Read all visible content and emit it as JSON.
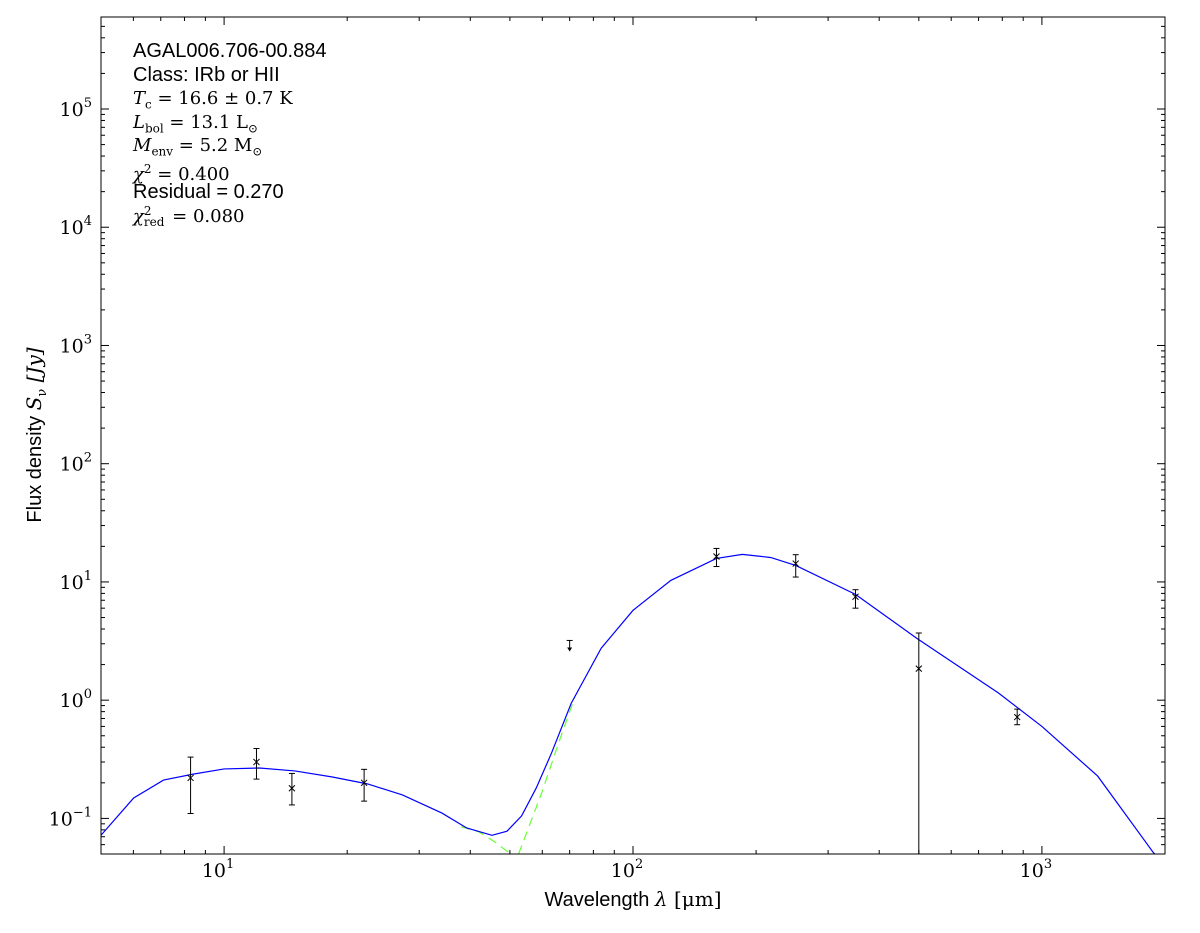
{
  "chart_data": {
    "type": "scatter",
    "xscale": "log",
    "yscale": "log",
    "xlim": [
      5,
      2000
    ],
    "ylim": [
      0.05,
      600000
    ],
    "grid": false,
    "xlabel": {
      "text": "Wavelength ",
      "symbol": "λ",
      "unit": " [μm]"
    },
    "ylabel": {
      "text": "Flux density ",
      "symbol": "S",
      "sub": "ν",
      "unit": " [Jy]"
    },
    "x_ticks": [
      {
        "base": "10",
        "exp": "1",
        "value": 10
      },
      {
        "base": "10",
        "exp": "2",
        "value": 100
      },
      {
        "base": "10",
        "exp": "3",
        "value": 1000
      }
    ],
    "y_ticks": [
      {
        "base": "10",
        "exp": "−1",
        "value": 0.1
      },
      {
        "base": "10",
        "exp": "0",
        "value": 1
      },
      {
        "base": "10",
        "exp": "1",
        "value": 10
      },
      {
        "base": "10",
        "exp": "2",
        "value": 100
      },
      {
        "base": "10",
        "exp": "3",
        "value": 1000
      },
      {
        "base": "10",
        "exp": "4",
        "value": 10000
      },
      {
        "base": "10",
        "exp": "5",
        "value": 100000
      }
    ],
    "annotations": {
      "source": "AGAL006.706-00.884",
      "class": "Class: IRb or HII",
      "tc": {
        "sym": "T",
        "sub": "c",
        "val": " = 16.6 ± 0.7 K"
      },
      "lbol": {
        "sym": "L",
        "sub": "bol",
        "val": " = 13.1 L",
        "unit_sub": "⊙"
      },
      "menv": {
        "sym": "M",
        "sub": "env",
        "val": " = 5.2 M",
        "unit_sub": "⊙"
      },
      "chi2": {
        "sym": "χ",
        "sup": "2",
        "val": " = 0.400"
      },
      "residual": "Residual = 0.270",
      "chi2red": {
        "sym": "χ",
        "sup": "2",
        "sub": "red",
        "val": " = 0.080"
      }
    },
    "points": [
      {
        "x": 8.28,
        "y": 0.22,
        "yerr_low": 0.11,
        "yerr_high": 0.33
      },
      {
        "x": 12,
        "y": 0.3,
        "yerr_low": 0.215,
        "yerr_high": 0.39
      },
      {
        "x": 14.65,
        "y": 0.18,
        "yerr_low": 0.13,
        "yerr_high": 0.24
      },
      {
        "x": 22,
        "y": 0.2,
        "yerr_low": 0.14,
        "yerr_high": 0.26
      },
      {
        "x": 160,
        "y": 16.4,
        "yerr_low": 13.5,
        "yerr_high": 19.2
      },
      {
        "x": 250,
        "y": 14.3,
        "yerr_low": 11,
        "yerr_high": 17
      },
      {
        "x": 350,
        "y": 7.5,
        "yerr_low": 6,
        "yerr_high": 8.6
      },
      {
        "x": 500,
        "y": 1.85,
        "yerr_low": 0.001,
        "yerr_high": 3.7
      },
      {
        "x": 870,
        "y": 0.72,
        "yerr_low": 0.62,
        "yerr_high": 0.84
      }
    ],
    "upper_limits": [
      {
        "x": 70,
        "y": 3.2
      }
    ],
    "model_total": {
      "color": "#0000ff",
      "x": [
        5,
        6.01,
        7.11,
        8.4,
        10,
        12.2,
        14.9,
        18.4,
        22.4,
        27.3,
        34.1,
        39.2,
        45.2,
        49.2,
        53.4,
        58,
        63.2,
        70.6,
        83.6,
        100,
        123.7,
        160,
        185,
        217,
        250,
        350,
        494,
        783,
        1000,
        1369,
        1868,
        2000
      ],
      "y": [
        0.072,
        0.149,
        0.211,
        0.237,
        0.262,
        0.267,
        0.252,
        0.224,
        0.196,
        0.158,
        0.111,
        0.083,
        0.072,
        0.078,
        0.105,
        0.181,
        0.357,
        0.94,
        2.75,
        5.75,
        10.3,
        15.8,
        17.1,
        16.1,
        13.8,
        7.85,
        3.34,
        1.15,
        0.6,
        0.228,
        0.052,
        0.04
      ]
    },
    "model_components": {
      "color": "#66ff33",
      "style": "dashed",
      "segments": [
        {
          "x": [
            38,
            42,
            46,
            51
          ],
          "y": [
            0.085,
            0.077,
            0.063,
            0.048
          ]
        },
        {
          "x": [
            52.5,
            56,
            60,
            66,
            72
          ],
          "y": [
            0.05,
            0.09,
            0.17,
            0.45,
            1.05
          ]
        }
      ]
    }
  }
}
